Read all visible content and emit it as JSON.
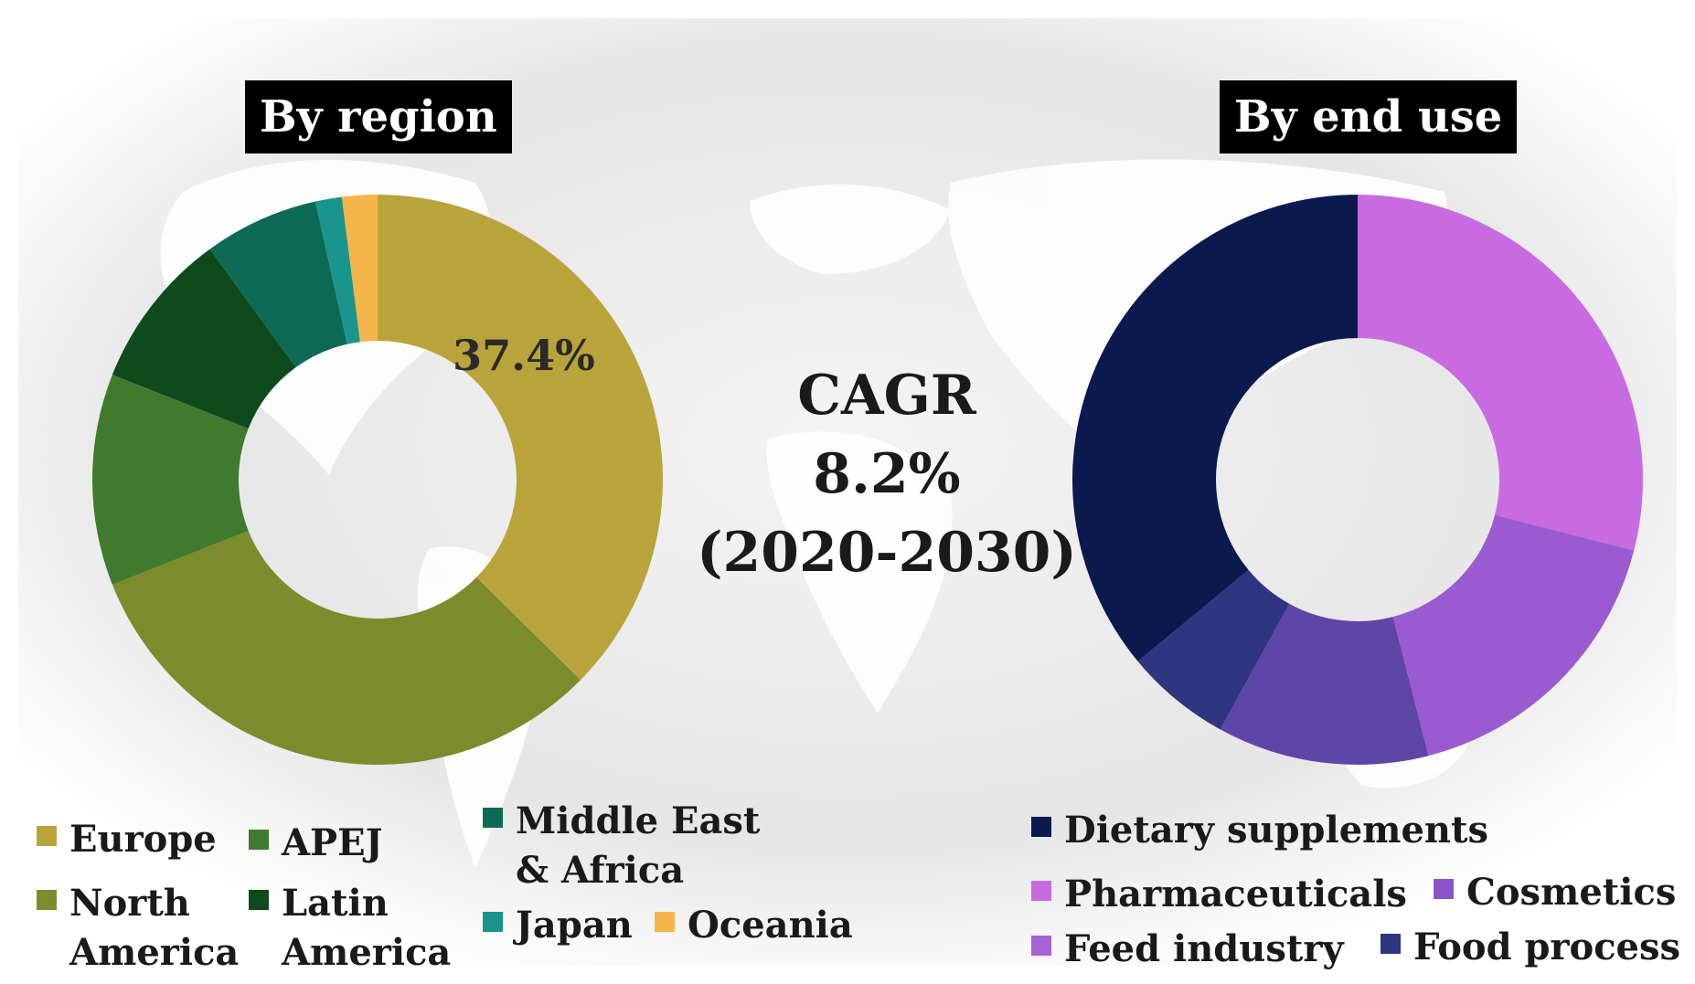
{
  "region_title": "By region",
  "enduse_title": "By end use",
  "cagr": {
    "line1": "CAGR",
    "line2": "8.2%",
    "line3": "(2020-2030)"
  },
  "chart_data": [
    {
      "type": "pie",
      "title": "By region",
      "donut": true,
      "start_angle_deg": 0,
      "direction": "clockwise",
      "slices": [
        {
          "name": "Europe",
          "value": 37.4,
          "color": "#b9a43c"
        },
        {
          "name": "North America",
          "value": 31.6,
          "color": "#7c8b2c"
        },
        {
          "name": "APEJ",
          "value": 12.0,
          "color": "#3f7a2e"
        },
        {
          "name": "Latin America",
          "value": 9.0,
          "color": "#0e4a1c"
        },
        {
          "name": "Middle East & Africa",
          "value": 6.5,
          "color": "#0d6b55"
        },
        {
          "name": "Japan",
          "value": 1.5,
          "color": "#1a958d"
        },
        {
          "name": "Oceania",
          "value": 2.0,
          "color": "#f5b54a"
        }
      ],
      "data_labels": [
        {
          "slice": "Europe",
          "text": "37.4%"
        }
      ],
      "legend": [
        {
          "text": "Europe",
          "color": "#b9a43c"
        },
        {
          "text": "APEJ",
          "color": "#3f7a2e"
        },
        {
          "text": "Middle East\n& Africa",
          "color": "#0d6b55"
        },
        {
          "text": "North\nAmerica",
          "color": "#7c8b2c"
        },
        {
          "text": "Latin\nAmerica",
          "color": "#0e4a1c"
        },
        {
          "text": "Japan",
          "color": "#1a958d"
        },
        {
          "text": "Oceania",
          "color": "#f5b54a"
        }
      ]
    },
    {
      "type": "pie",
      "title": "By end use",
      "donut": true,
      "start_angle_deg": 0,
      "direction": "clockwise",
      "slices": [
        {
          "name": "Pharmaceuticals",
          "value": 29.0,
          "color": "#c86be0"
        },
        {
          "name": "Cosmetics",
          "value": 17.0,
          "color": "#9a5bd0"
        },
        {
          "name": "Feed industry",
          "value": 12.0,
          "color": "#5e45a8"
        },
        {
          "name": "Food process",
          "value": 6.0,
          "color": "#2f3580"
        },
        {
          "name": "Dietary supplements",
          "value": 36.0,
          "color": "#0b1a4e"
        }
      ],
      "legend": [
        {
          "text": "Dietary supplements",
          "color": "#0b1a4e"
        },
        {
          "text": "Pharmaceuticals",
          "color": "#c86be0"
        },
        {
          "text": "Cosmetics",
          "color": "#8a55c8"
        },
        {
          "text": "Feed industry",
          "color": "#a462d4"
        },
        {
          "text": "Food process",
          "color": "#2f3580"
        }
      ]
    }
  ]
}
